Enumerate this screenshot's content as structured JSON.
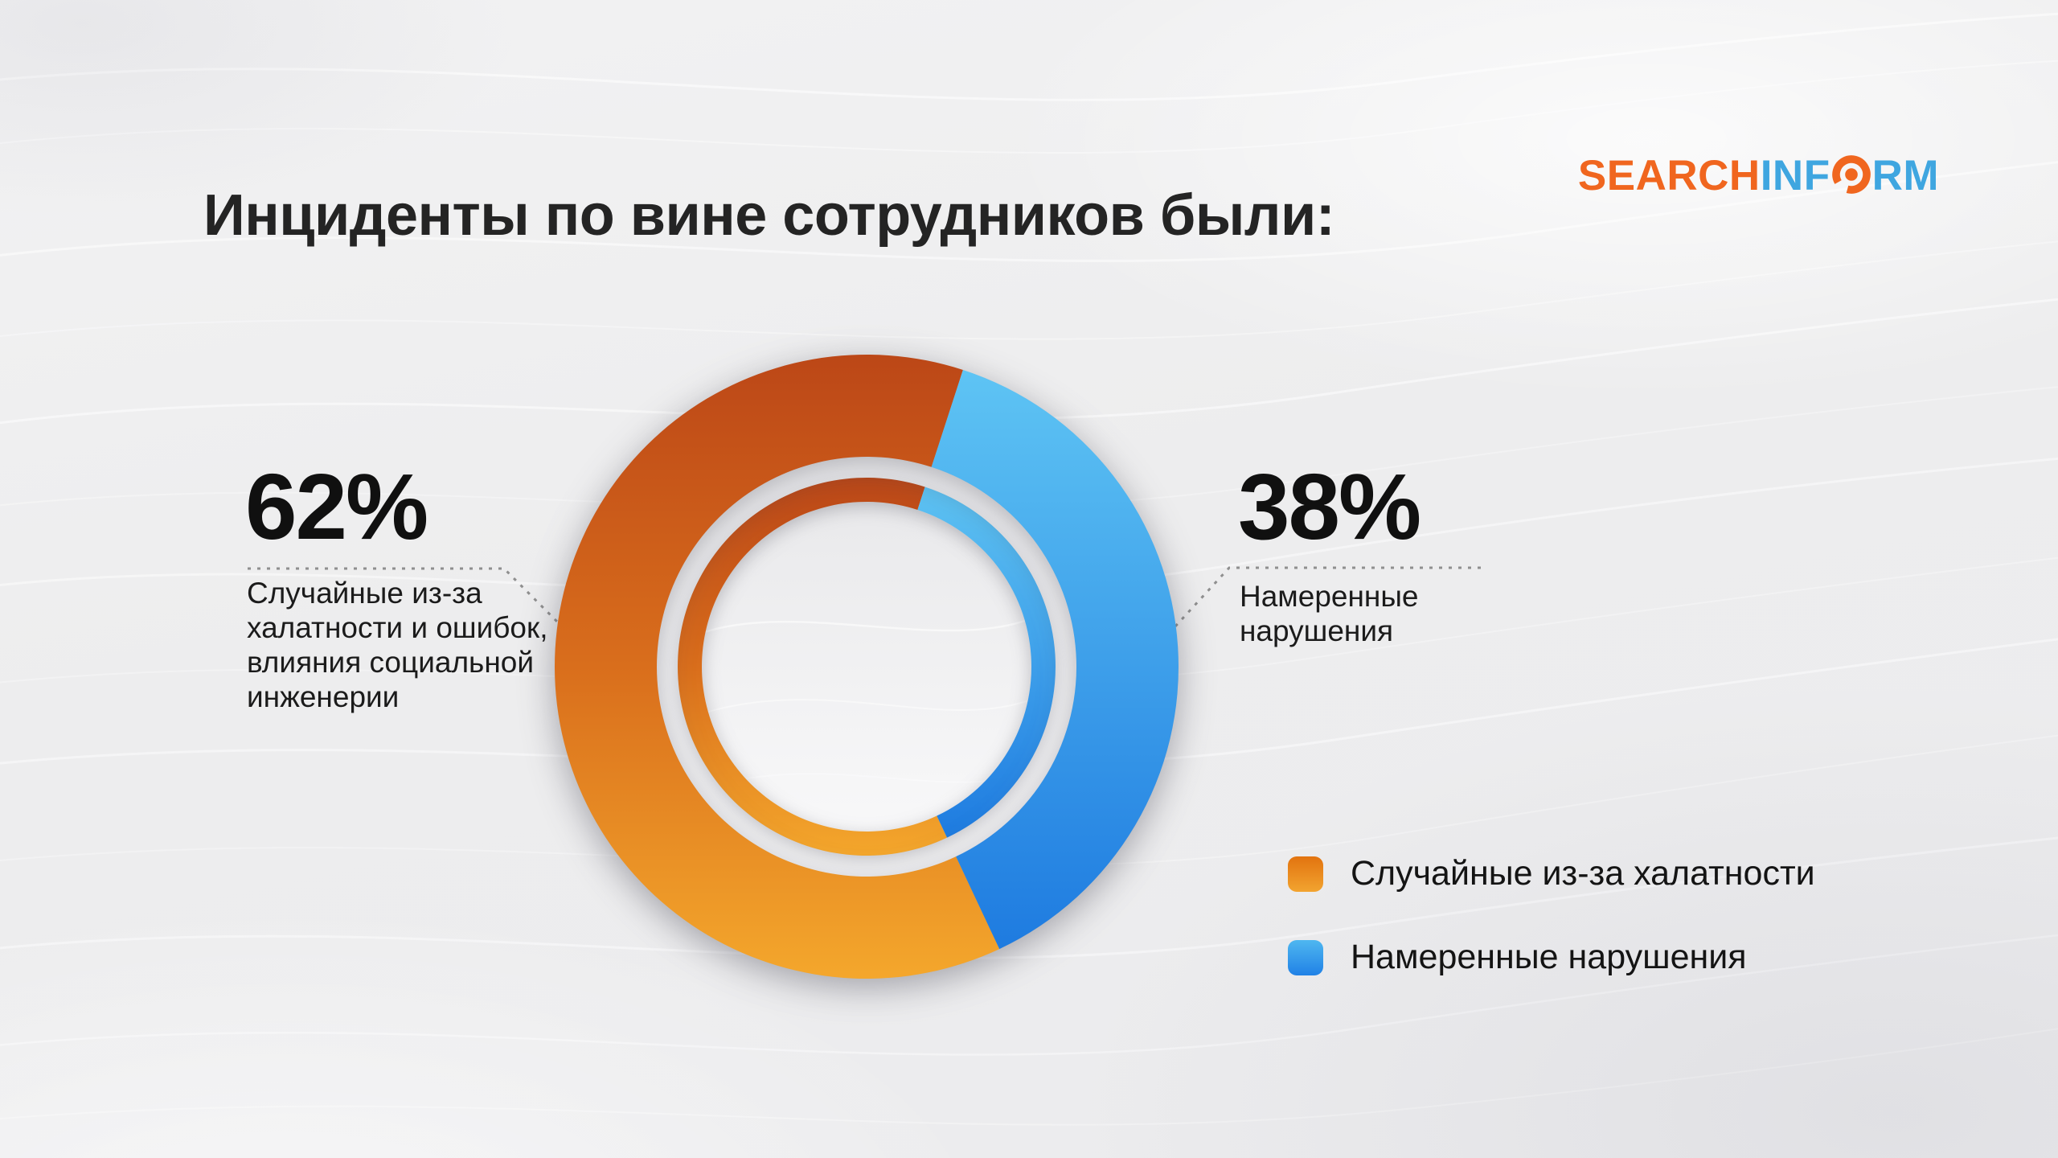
{
  "header": {
    "title": "Инциденты по вине сотрудников были:",
    "logo": {
      "search": "SEARCH",
      "inf": "INF",
      "rm": "RM",
      "o_icon": "magnifier-o",
      "orange": "#F0661F",
      "blue": "#3FA6E0"
    }
  },
  "chart_data": {
    "type": "pie",
    "donut": true,
    "title": "Инциденты по вине сотрудников были:",
    "categories": [
      "Случайные из-за халатности и ошибок, влияния социальной инженерии",
      "Намеренные нарушения"
    ],
    "values": [
      62,
      38
    ],
    "unit": "%",
    "labels": [
      "62%",
      "38%"
    ],
    "start_angle_deg": 18,
    "segment_colors": [
      {
        "name": "accidental-orange",
        "top": "#BC4717",
        "mid": "#D96E1C",
        "bottom": "#F4A72C"
      },
      {
        "name": "intentional-blue",
        "top": "#5EC4F4",
        "bottom": "#1E7BE0"
      }
    ],
    "legend_position": "bottom-right",
    "grid": false
  },
  "callouts": {
    "left": {
      "value_label": "62%",
      "lines": [
        "Случайные из-за",
        "халатности и ошибок,",
        "влияния социальной",
        "инженерии"
      ]
    },
    "right": {
      "value_label": "38%",
      "lines": [
        "Намеренные",
        "нарушения"
      ]
    }
  },
  "legend": {
    "items": [
      {
        "label": "Случайные из-за халатности",
        "color_top": "#E2730F",
        "color_bottom": "#F2A430"
      },
      {
        "label": "Намеренные нарушения",
        "color_top": "#4FB7F0",
        "color_bottom": "#2081E6"
      }
    ]
  },
  "colors": {
    "background": "#ECECEE",
    "title_text": "#242424",
    "percent_text": "#101010",
    "connector_dots": "#8F8F8F",
    "plate_white": "#FCFCFD",
    "center_top": "#E9E9EB",
    "center_bottom": "#F8F8F9"
  }
}
